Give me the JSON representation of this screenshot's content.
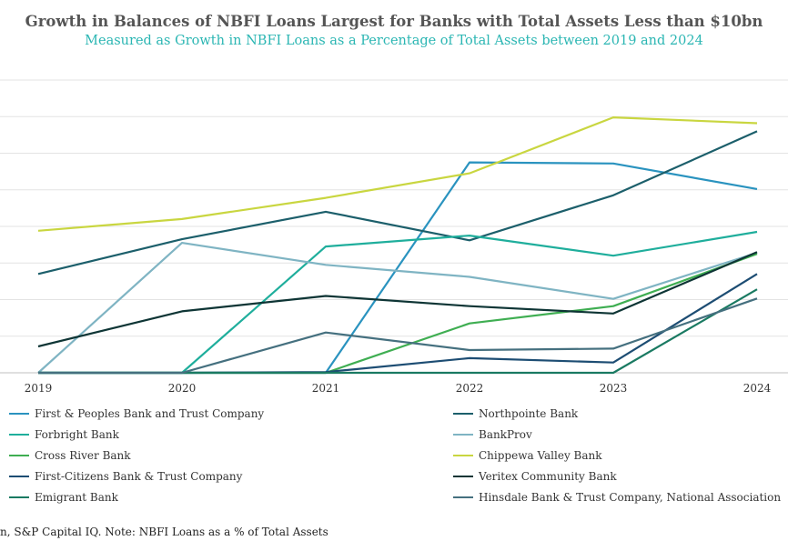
{
  "chart_data": {
    "type": "line",
    "title": "Growth in Balances of NBFI Loans Largest for Banks with Total Assets Less than $10bn",
    "subtitle": "Measured as Growth in NBFI Loans as a Percentage of Total Assets between 2019 and 2024",
    "x": [
      "2019",
      "2020",
      "2021",
      "2022",
      "2023",
      "2024"
    ],
    "ylim": [
      0,
      8
    ],
    "grid": true,
    "legend_position": "bottom",
    "series": [
      {
        "name": "First & Peoples Bank and Trust Company",
        "color": "#2a93bf",
        "values": [
          0,
          0,
          0,
          5.75,
          5.72,
          5.02
        ]
      },
      {
        "name": "Northpointe Bank",
        "color": "#1c5f6b",
        "values": [
          2.7,
          3.65,
          4.4,
          3.62,
          4.85,
          6.6
        ]
      },
      {
        "name": "Forbright Bank",
        "color": "#1fae9c",
        "values": [
          0,
          0,
          3.45,
          3.75,
          3.2,
          3.85
        ]
      },
      {
        "name": "BankProv",
        "color": "#7fb4c3",
        "values": [
          0,
          3.55,
          2.95,
          2.62,
          2.02,
          3.28
        ]
      },
      {
        "name": "Cross River Bank",
        "color": "#3fae52",
        "values": [
          0,
          0,
          0,
          1.35,
          1.82,
          3.25
        ]
      },
      {
        "name": "Chippewa Valley Bank",
        "color": "#c9d640",
        "values": [
          3.88,
          4.2,
          4.78,
          5.45,
          6.98,
          6.82
        ]
      },
      {
        "name": "First-Citizens Bank & Trust Company",
        "color": "#1d4d73",
        "values": [
          0,
          0,
          0.02,
          0.4,
          0.28,
          2.7
        ]
      },
      {
        "name": "Veritex Community Bank",
        "color": "#0e3535",
        "values": [
          0.72,
          1.68,
          2.1,
          1.82,
          1.62,
          3.3
        ]
      },
      {
        "name": "Emigrant Bank",
        "color": "#1a7a62",
        "values": [
          0,
          0,
          0,
          0,
          0,
          2.28
        ]
      },
      {
        "name": "Hinsdale Bank & Trust Company, National Association",
        "color": "#45707f",
        "values": [
          0,
          0,
          1.1,
          0.62,
          0.66,
          2.03
        ]
      }
    ]
  },
  "source": "n, S&P Capital IQ.  Note:  NBFI Loans as a % of Total Assets"
}
